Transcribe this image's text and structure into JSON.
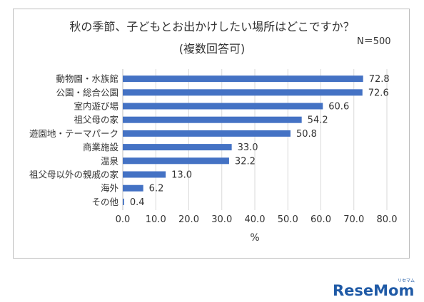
{
  "title": "秋の季節、子どもとお出かけしたい場所はどこですか？",
  "subtitle": "(複数回答可)",
  "note": "N＝500",
  "logo": {
    "text": "ReseMom",
    "ruby": "リセマム",
    "color": "#1f5aa6"
  },
  "colors": {
    "bar": "#4472c4",
    "grid": "#d9d9d9",
    "text": "#333333"
  },
  "chart_data": {
    "type": "bar",
    "orientation": "horizontal",
    "categories": [
      "動物園・水族館",
      "公園・総合公園",
      "室内遊び場",
      "祖父母の家",
      "遊園地・テーマパーク",
      "商業施設",
      "温泉",
      "祖父母以外の親戚の家",
      "海外",
      "その他"
    ],
    "values": [
      72.8,
      72.6,
      60.6,
      54.2,
      50.8,
      33.0,
      32.2,
      13.0,
      6.2,
      0.4
    ],
    "value_labels": [
      "72.8",
      "72.6",
      "60.6",
      "54.2",
      "50.8",
      "33.0",
      "32.2",
      "13.0",
      "6.2",
      "0.4"
    ],
    "xlim": [
      0,
      80
    ],
    "xticks": [
      "0.0",
      "10.0",
      "20.0",
      "30.0",
      "40.0",
      "50.0",
      "60.0",
      "70.0",
      "80.0"
    ],
    "xlabel": "%",
    "grid": true
  }
}
